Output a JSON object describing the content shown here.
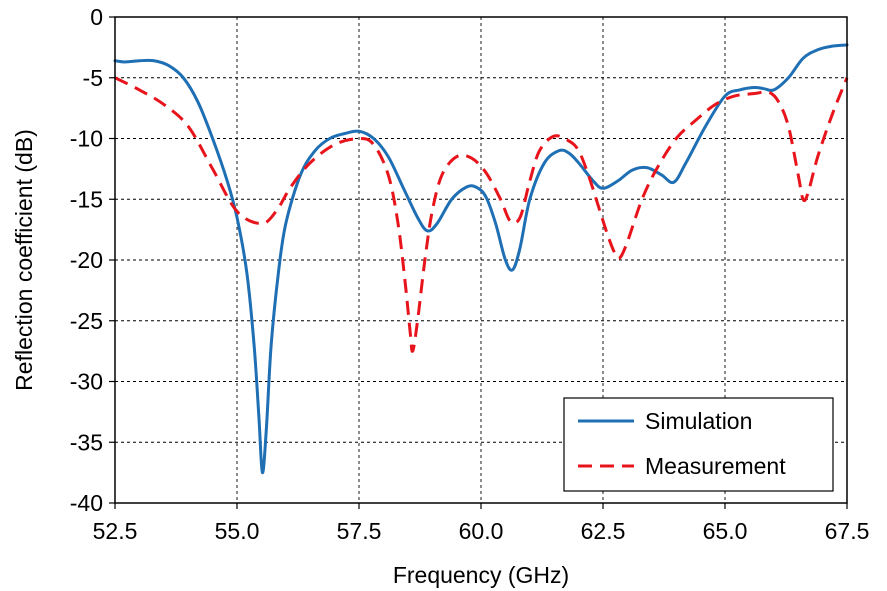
{
  "chart_data": {
    "type": "line",
    "title": "",
    "xlabel": "Frequency (GHz)",
    "ylabel": "Reflection coefficient (dB)",
    "xlim": [
      52.5,
      67.5
    ],
    "ylim": [
      -40,
      0
    ],
    "xticks": [
      "52.5",
      "55.0",
      "57.5",
      "60.0",
      "62.5",
      "65.0",
      "67.5"
    ],
    "yticks": [
      "0",
      "-5",
      "-10",
      "-15",
      "-20",
      "-25",
      "-30",
      "-35",
      "-40"
    ],
    "grid": true,
    "legend_position": "bottom-right",
    "series": [
      {
        "name": "Simulation",
        "color": "#1f6fb4",
        "dash": "solid",
        "x": [
          52.5,
          52.7,
          53.0,
          53.3,
          53.6,
          53.9,
          54.2,
          54.5,
          54.8,
          55.0,
          55.2,
          55.35,
          55.45,
          55.52,
          55.6,
          55.7,
          55.85,
          56.0,
          56.3,
          56.6,
          56.9,
          57.2,
          57.5,
          57.8,
          58.1,
          58.4,
          58.7,
          58.9,
          59.1,
          59.4,
          59.7,
          59.9,
          60.1,
          60.3,
          60.5,
          60.65,
          60.8,
          61.0,
          61.3,
          61.6,
          61.8,
          62.0,
          62.3,
          62.5,
          62.8,
          63.1,
          63.4,
          63.7,
          63.95,
          64.2,
          64.6,
          65.0,
          65.3,
          65.6,
          65.8,
          66.0,
          66.3,
          66.6,
          66.9,
          67.2,
          67.5
        ],
        "y": [
          -3.6,
          -3.7,
          -3.6,
          -3.6,
          -4.0,
          -5.0,
          -7.0,
          -10.0,
          -13.5,
          -16.5,
          -21.0,
          -27.0,
          -33.0,
          -37.5,
          -34.0,
          -27.0,
          -21.0,
          -17.0,
          -13.0,
          -11.0,
          -10.0,
          -9.6,
          -9.4,
          -10.0,
          -11.5,
          -14.0,
          -16.5,
          -17.6,
          -17.0,
          -15.0,
          -14.0,
          -14.0,
          -14.8,
          -17.0,
          -20.0,
          -20.8,
          -19.0,
          -15.0,
          -12.0,
          -11.0,
          -11.2,
          -12.0,
          -13.5,
          -14.1,
          -13.5,
          -12.6,
          -12.4,
          -13.0,
          -13.6,
          -12.0,
          -9.0,
          -6.5,
          -6.0,
          -5.8,
          -5.9,
          -6.0,
          -5.0,
          -3.4,
          -2.7,
          -2.4,
          -2.3
        ]
      },
      {
        "name": "Measurement",
        "color": "#e8141c",
        "dash": "dashed",
        "x": [
          52.5,
          53.0,
          53.5,
          54.0,
          54.5,
          55.0,
          55.5,
          55.8,
          56.1,
          56.5,
          57.0,
          57.5,
          57.8,
          58.1,
          58.3,
          58.45,
          58.55,
          58.6,
          58.7,
          58.85,
          59.0,
          59.2,
          59.5,
          59.8,
          60.1,
          60.4,
          60.6,
          60.8,
          61.0,
          61.2,
          61.5,
          61.8,
          62.0,
          62.2,
          62.4,
          62.6,
          62.75,
          62.85,
          63.0,
          63.3,
          63.6,
          64.0,
          64.4,
          64.8,
          65.2,
          65.6,
          65.9,
          66.1,
          66.3,
          66.5,
          66.6,
          66.7,
          66.9,
          67.2,
          67.5
        ],
        "y": [
          -5.0,
          -6.0,
          -7.2,
          -9.0,
          -12.5,
          -16.0,
          -17.0,
          -16.0,
          -14.0,
          -12.0,
          -10.5,
          -10.0,
          -10.5,
          -13.0,
          -17.0,
          -22.0,
          -26.0,
          -27.5,
          -25.0,
          -20.0,
          -16.0,
          -13.0,
          -11.5,
          -11.6,
          -12.8,
          -15.0,
          -16.8,
          -16.5,
          -13.5,
          -11.0,
          -9.8,
          -10.2,
          -11.0,
          -13.0,
          -15.5,
          -18.0,
          -19.5,
          -19.8,
          -18.5,
          -15.0,
          -12.5,
          -10.0,
          -8.5,
          -7.2,
          -6.5,
          -6.3,
          -6.2,
          -7.0,
          -9.0,
          -13.0,
          -15.0,
          -14.5,
          -11.5,
          -8.0,
          -5.0
        ]
      }
    ]
  }
}
